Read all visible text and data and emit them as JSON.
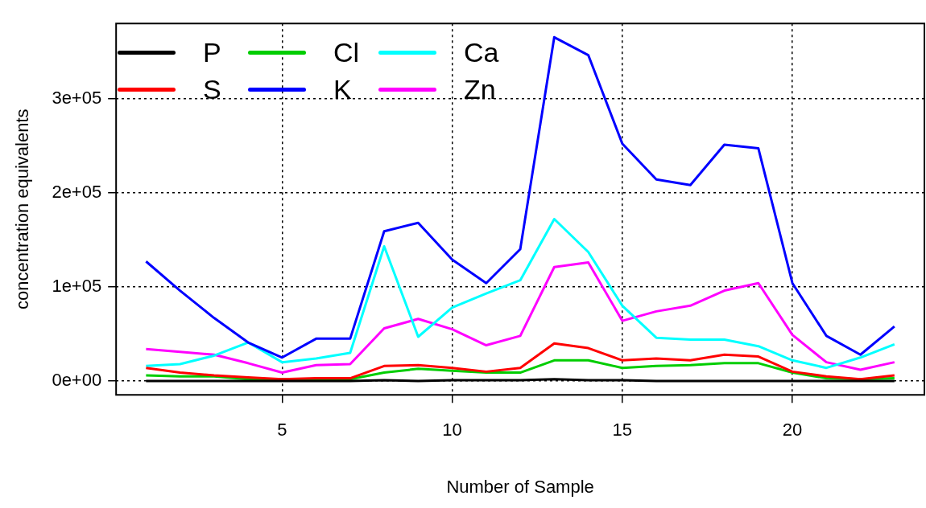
{
  "chart_data": {
    "type": "line",
    "xlabel": "Number of Sample",
    "ylabel": "concentration equivalents",
    "x": [
      1,
      2,
      3,
      4,
      5,
      6,
      7,
      8,
      9,
      10,
      11,
      12,
      13,
      14,
      15,
      16,
      17,
      18,
      19,
      20,
      21,
      22,
      23
    ],
    "xlim": [
      0.12,
      23.88
    ],
    "xticks": [
      5,
      10,
      15,
      20
    ],
    "ylim": [
      -14600,
      379600
    ],
    "yticks": [
      {
        "value": 0,
        "label": "0e+00"
      },
      {
        "value": 100000,
        "label": "1e+05"
      },
      {
        "value": 200000,
        "label": "2e+05"
      },
      {
        "value": 300000,
        "label": "3e+05"
      }
    ],
    "grid": true,
    "legend": "top left",
    "marker": "none",
    "line_style": "solid",
    "series": [
      {
        "name": "P",
        "color": "#000000",
        "values": [
          0,
          0,
          0,
          0,
          0,
          0,
          0,
          1000,
          0,
          1000,
          1000,
          1000,
          2000,
          1000,
          1000,
          0,
          0,
          0,
          0,
          0,
          0,
          0,
          0
        ]
      },
      {
        "name": "S",
        "color": "#ff0000",
        "values": [
          14000,
          9000,
          6000,
          4000,
          2000,
          3000,
          3000,
          16000,
          17000,
          14000,
          10000,
          14000,
          40000,
          35000,
          22000,
          24000,
          22000,
          28000,
          26000,
          10000,
          5000,
          2000,
          6000
        ]
      },
      {
        "name": "Cl",
        "color": "#00cd00",
        "values": [
          6000,
          5000,
          5000,
          2000,
          2000,
          2000,
          2000,
          9000,
          13000,
          11000,
          9000,
          9000,
          22000,
          22000,
          14000,
          16000,
          17000,
          19000,
          19000,
          9000,
          3000,
          2000,
          3000
        ]
      },
      {
        "name": "K",
        "color": "#0000ff",
        "values": [
          127000,
          96000,
          67000,
          41000,
          25000,
          45000,
          45000,
          159000,
          168000,
          129000,
          104000,
          140000,
          365000,
          346000,
          252000,
          214000,
          208000,
          251000,
          247000,
          104000,
          48000,
          28000,
          58000
        ]
      },
      {
        "name": "Ca",
        "color": "#00ffff",
        "values": [
          16000,
          18000,
          27000,
          41000,
          20000,
          24000,
          30000,
          143000,
          47000,
          78000,
          93000,
          107000,
          172000,
          137000,
          80000,
          46000,
          44000,
          44000,
          37000,
          22000,
          14000,
          25000,
          39000
        ]
      },
      {
        "name": "Zn",
        "color": "#ff00ff",
        "values": [
          34000,
          31000,
          28000,
          19000,
          9000,
          17000,
          18000,
          56000,
          66000,
          55000,
          38000,
          48000,
          121000,
          126000,
          64000,
          74000,
          80000,
          96000,
          104000,
          49000,
          20000,
          12000,
          20000
        ]
      }
    ]
  }
}
